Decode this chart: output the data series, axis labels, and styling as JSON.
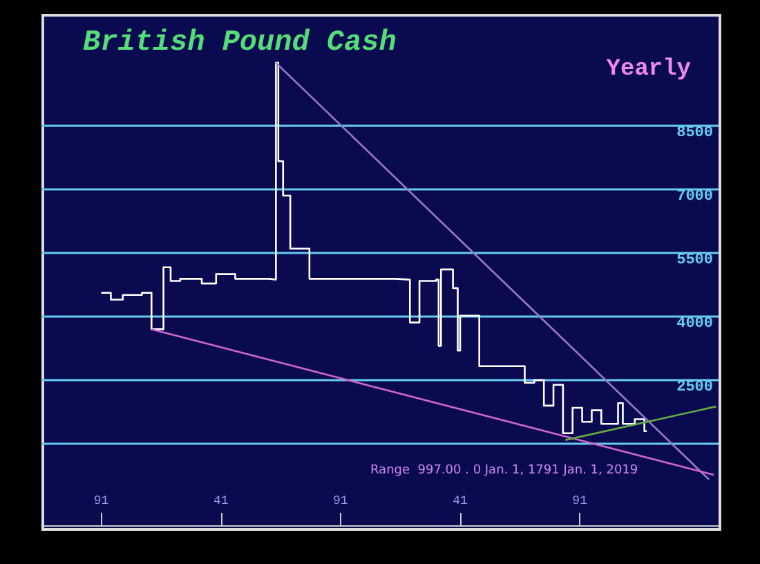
{
  "chart_data": {
    "type": "step",
    "title": "British Pound Cash",
    "annotations": [
      "Yearly",
      "Range  997.00 . 0 Jan. 1, 1791 Jan. 1, 2019"
    ],
    "xlim": [
      "1766",
      "2049"
    ],
    "ylim": [
      -920,
      11070
    ],
    "xticks": [
      {
        "value": "1791",
        "label": "91"
      },
      {
        "value": "1841",
        "label": "41"
      },
      {
        "value": "1891",
        "label": "91"
      },
      {
        "value": "1941",
        "label": "41"
      },
      {
        "value": "1991",
        "label": "91"
      }
    ],
    "yticks": [
      {
        "value": 1000,
        "label": null
      },
      2500,
      4000,
      5500,
      7000,
      8500
    ],
    "grid": "y",
    "series": [
      {
        "color": "#ffffff",
        "x": [
          "1791",
          "1795",
          "1800",
          "1808",
          "1812",
          "1817",
          "1820",
          "1824",
          "1833",
          "1839",
          "1847",
          "1861",
          "1864",
          "1865",
          "1867",
          "1870",
          "1878",
          "1914",
          "1920",
          "1924",
          "1931",
          "1932",
          "1933",
          "1938",
          "1940",
          "1941",
          "1949",
          "1967",
          "1968",
          "1972",
          "1976",
          "1980",
          "1984",
          "1988",
          "1992",
          "1996",
          "2000",
          "2007",
          "2009",
          "2014",
          "2018",
          "2019"
        ],
        "values": [
          4560,
          4400,
          4510,
          4560,
          3700,
          5160,
          4840,
          4890,
          4780,
          5000,
          4890,
          4870,
          9980,
          7660,
          6850,
          5600,
          4890,
          4870,
          3860,
          4840,
          4870,
          3310,
          5110,
          4670,
          3200,
          4020,
          2830,
          2830,
          2440,
          2500,
          1900,
          2390,
          1250,
          1850,
          1520,
          1790,
          1470,
          1960,
          1470,
          1580,
          1300,
          1300
        ]
      },
      {
        "type": "line",
        "color": "#9977cc",
        "x": [
          "1864",
          "2045"
        ],
        "values": [
          9980,
          160
        ]
      },
      {
        "type": "line",
        "color": "#cc66cc",
        "x": [
          "1812",
          "2047"
        ],
        "values": [
          3700,
          270
        ]
      },
      {
        "type": "line",
        "color": "#66aa44",
        "x": [
          "1985",
          "2048"
        ],
        "values": [
          1090,
          1880
        ]
      }
    ]
  }
}
